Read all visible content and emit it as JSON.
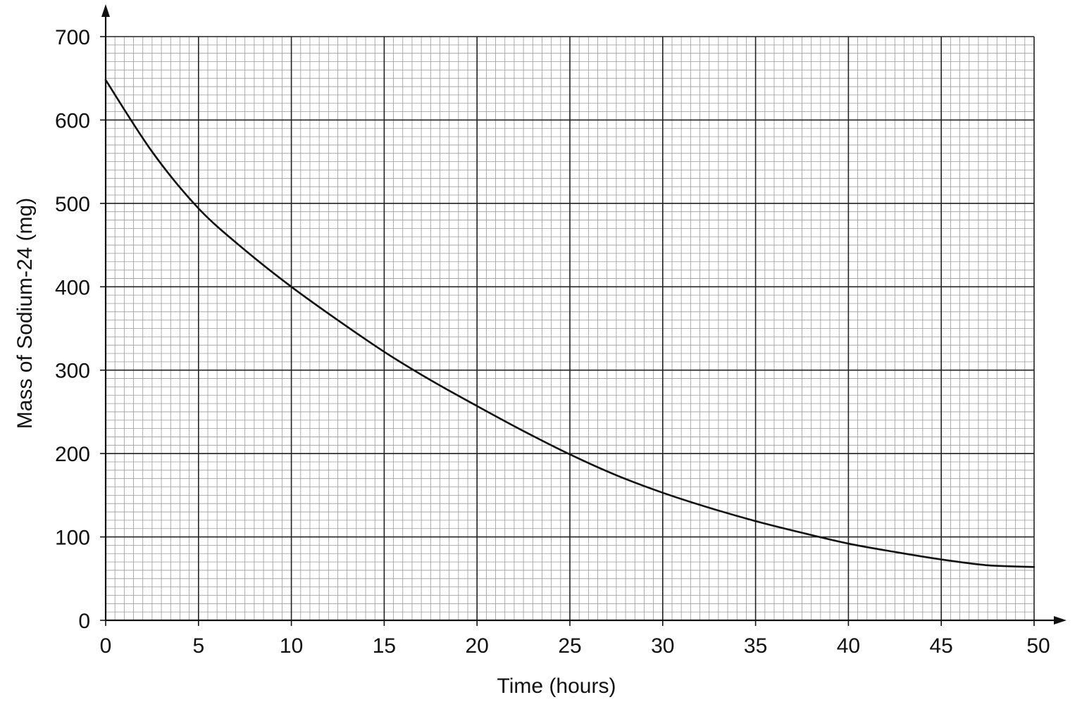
{
  "chart_data": {
    "type": "line",
    "title": "",
    "xlabel": "Time (hours)",
    "ylabel": "Mass of Sodium-24 (mg)",
    "xlim": [
      0,
      50
    ],
    "ylim": [
      0,
      700
    ],
    "x_ticks": [
      "0",
      "5",
      "10",
      "15",
      "20",
      "25",
      "30",
      "35",
      "40",
      "45",
      "50"
    ],
    "y_ticks": [
      "0",
      "100",
      "200",
      "300",
      "400",
      "500",
      "600",
      "700"
    ],
    "grid": true,
    "legend": "none",
    "line_color": "#111111",
    "grid_color_major": "#222222",
    "grid_color_minor": "#9a9a9a",
    "series": [
      {
        "x": [
          0,
          2.5,
          5,
          7.5,
          10,
          12.5,
          15,
          17.5,
          20,
          22.5,
          25,
          27.5,
          30,
          32.5,
          35,
          37.5,
          40,
          42.5,
          45,
          47.5,
          50
        ],
        "values": [
          648,
          562,
          494,
          444,
          400,
          360,
          322,
          288,
          257,
          227,
          199,
          174,
          153,
          135,
          119,
          105,
          92,
          82,
          73,
          66,
          64
        ]
      }
    ]
  }
}
